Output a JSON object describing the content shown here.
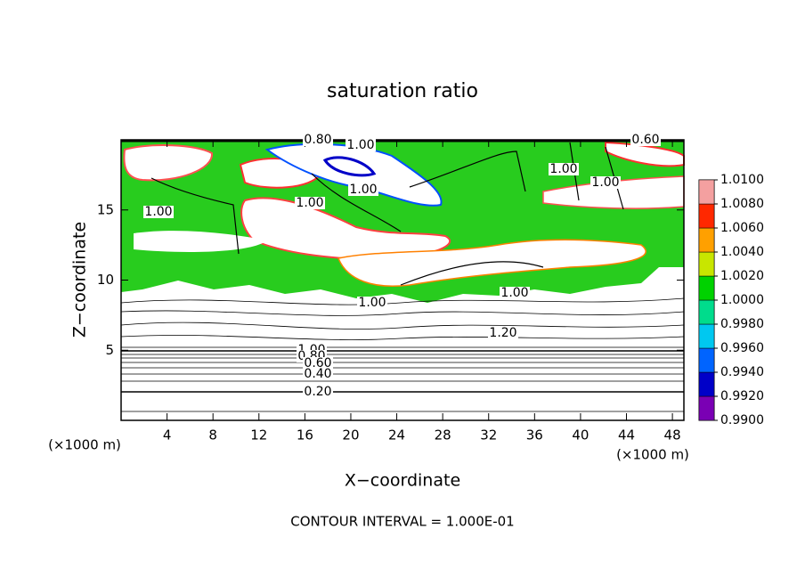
{
  "chart_data": {
    "type": "contour",
    "title": "saturation ratio",
    "xlabel": "X−coordinate",
    "ylabel": "Z−coordinate",
    "x_unit_label": "(×1000 m)",
    "footer": "CONTOUR INTERVAL = 1.000E-01",
    "xlim": [
      0,
      49
    ],
    "xticks": [
      4,
      8,
      12,
      16,
      20,
      24,
      28,
      32,
      36,
      40,
      44,
      48
    ],
    "ylim": [
      0,
      20
    ],
    "yticks": [
      5,
      10,
      15
    ],
    "contour_labels": [
      "0.80",
      "1.00",
      "0.60",
      "1.00",
      "1.00",
      "1.00",
      "1.00",
      "1.00",
      "1.00",
      "1.00",
      "1.20",
      "1.00",
      "0.80",
      "0.60",
      "0.40",
      "0.20"
    ],
    "colorbar": {
      "ticks": [
        {
          "value": 0.99,
          "label": "0.9900"
        },
        {
          "value": 0.992,
          "label": "0.9920"
        },
        {
          "value": 0.994,
          "label": "0.9940"
        },
        {
          "value": 0.996,
          "label": "0.9960"
        },
        {
          "value": 0.998,
          "label": "0.9980"
        },
        {
          "value": 1.0,
          "label": "1.0000"
        },
        {
          "value": 1.002,
          "label": "1.0020"
        },
        {
          "value": 1.004,
          "label": "1.0040"
        },
        {
          "value": 1.006,
          "label": "1.0060"
        },
        {
          "value": 1.008,
          "label": "1.0080"
        },
        {
          "value": 1.01,
          "label": "1.0100"
        }
      ],
      "colors": [
        "#7a00b4",
        "#0000c8",
        "#0064ff",
        "#00c8f0",
        "#00dc8c",
        "#00d200",
        "#c8e600",
        "#ffa000",
        "#ff2800",
        "#f4a0a0"
      ]
    }
  }
}
